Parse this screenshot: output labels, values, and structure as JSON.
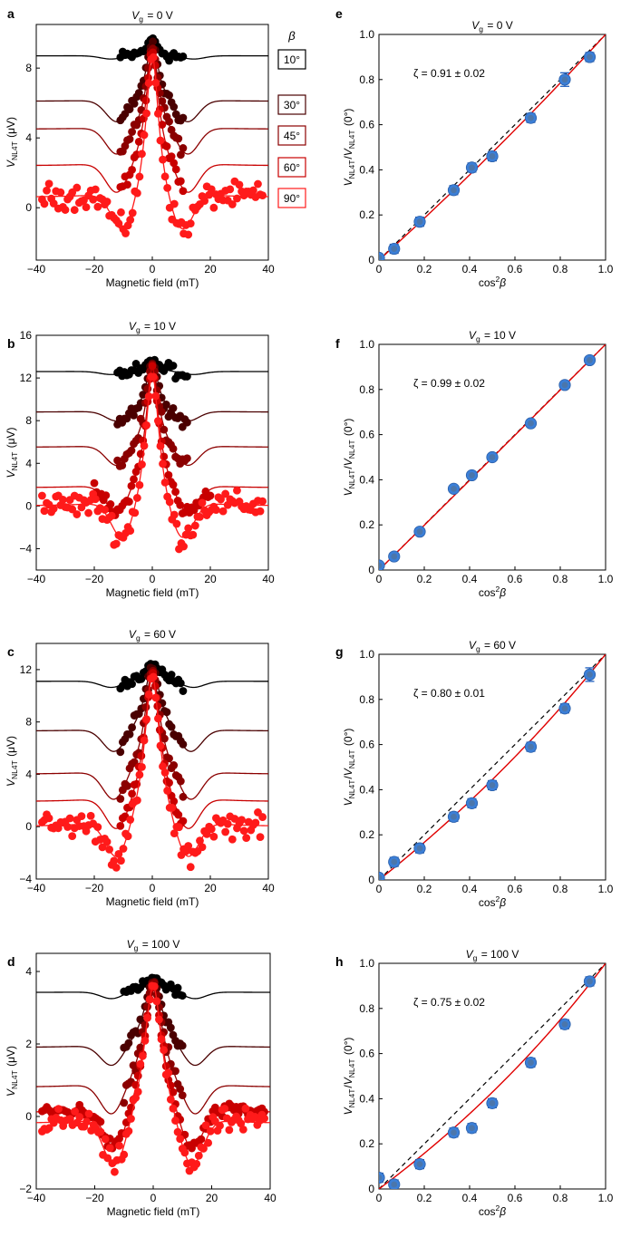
{
  "figure": {
    "beta_legend": {
      "header": "β",
      "entries": [
        {
          "label": "10°",
          "color": "#000000"
        },
        {
          "label": "30°",
          "color": "#4a0000"
        },
        {
          "label": "45°",
          "color": "#8b0000"
        },
        {
          "label": "60°",
          "color": "#c80000"
        },
        {
          "label": "90°",
          "color": "#ff1a1a"
        }
      ]
    }
  },
  "chart_data": [
    {
      "panel": "a",
      "type": "scatter",
      "title": "V_g = 0 V",
      "xlabel": "Magnetic field (mT)",
      "ylabel": "V_NL4T (μV)",
      "xlim": [
        -40,
        40
      ],
      "ylim": [
        -3,
        10.5
      ],
      "xticks": [
        -40,
        -20,
        0,
        20,
        40
      ],
      "yticks": [
        0,
        4,
        8
      ],
      "series": [
        {
          "name": "10°",
          "color": "#000000",
          "baseline": 8.7,
          "peak": 9.7,
          "dip": 0.2,
          "width": 2.0,
          "dip_width": 14,
          "range": 11
        },
        {
          "name": "30°",
          "color": "#4a0000",
          "baseline": 6.1,
          "peak": 9.5,
          "dip": 1.3,
          "width": 2.4,
          "dip_width": 12,
          "range": 11
        },
        {
          "name": "45°",
          "color": "#8b0000",
          "baseline": 4.5,
          "peak": 9.2,
          "dip": 1.6,
          "width": 2.4,
          "dip_width": 12,
          "range": 11
        },
        {
          "name": "60°",
          "color": "#c80000",
          "baseline": 2.4,
          "peak": 9.0,
          "dip": 1.8,
          "width": 2.6,
          "dip_width": 12,
          "range": 11
        },
        {
          "name": "90°",
          "color": "#ff1a1a",
          "baseline": 0.6,
          "peak": 8.8,
          "dip": 2.3,
          "width": 2.6,
          "dip_width": 10,
          "range": 38
        }
      ]
    },
    {
      "panel": "b",
      "type": "scatter",
      "title": "V_g = 10 V",
      "xlabel": "Magnetic field (mT)",
      "ylabel": "V_NL4T (μV)",
      "xlim": [
        -40,
        40
      ],
      "ylim": [
        -6,
        16
      ],
      "xticks": [
        -40,
        -20,
        0,
        20,
        40
      ],
      "yticks": [
        -4,
        0,
        4,
        8,
        12,
        16
      ],
      "series": [
        {
          "name": "10°",
          "color": "#000000",
          "baseline": 12.6,
          "peak": 13.8,
          "dip": 0.3,
          "width": 2.0,
          "dip_width": 14,
          "range": 12
        },
        {
          "name": "30°",
          "color": "#4a0000",
          "baseline": 8.8,
          "peak": 13.5,
          "dip": 1.0,
          "width": 2.4,
          "dip_width": 12,
          "range": 12
        },
        {
          "name": "45°",
          "color": "#8b0000",
          "baseline": 5.5,
          "peak": 13.3,
          "dip": 2.0,
          "width": 2.5,
          "dip_width": 12,
          "range": 12
        },
        {
          "name": "60°",
          "color": "#c80000",
          "baseline": 1.7,
          "peak": 13.0,
          "dip": 2.8,
          "width": 2.6,
          "dip_width": 12,
          "range": 20
        },
        {
          "name": "90°",
          "color": "#ff1a1a",
          "baseline": 0.0,
          "peak": 12.5,
          "dip": 3.8,
          "width": 2.8,
          "dip_width": 10,
          "range": 38
        }
      ]
    },
    {
      "panel": "c",
      "type": "scatter",
      "title": "V_g = 60 V",
      "xlabel": "Magnetic field (mT)",
      "ylabel": "V_NL4T (μV)",
      "xlim": [
        -40,
        40
      ],
      "ylim": [
        -4,
        14
      ],
      "xticks": [
        -40,
        -20,
        0,
        20,
        40
      ],
      "yticks": [
        -4,
        0,
        4,
        8,
        12
      ],
      "series": [
        {
          "name": "10°",
          "color": "#000000",
          "baseline": 11.1,
          "peak": 12.5,
          "dip": 0.5,
          "width": 2.5,
          "dip_width": 14,
          "range": 11
        },
        {
          "name": "30°",
          "color": "#4a0000",
          "baseline": 7.3,
          "peak": 12.3,
          "dip": 1.8,
          "width": 3.0,
          "dip_width": 13,
          "range": 11
        },
        {
          "name": "45°",
          "color": "#8b0000",
          "baseline": 4.0,
          "peak": 12.0,
          "dip": 2.3,
          "width": 3.0,
          "dip_width": 13,
          "range": 11
        },
        {
          "name": "60°",
          "color": "#c80000",
          "baseline": 1.9,
          "peak": 11.8,
          "dip": 2.6,
          "width": 3.0,
          "dip_width": 12,
          "range": 11
        },
        {
          "name": "90°",
          "color": "#ff1a1a",
          "baseline": 0.0,
          "peak": 11.5,
          "dip": 3.0,
          "width": 3.2,
          "dip_width": 12,
          "range": 38
        }
      ]
    },
    {
      "panel": "d",
      "type": "scatter",
      "title": "V_g = 100 V",
      "xlabel": "Magnetic field (mT)",
      "ylabel": "V_NL4T (μV)",
      "xlim": [
        -40,
        40
      ],
      "ylim": [
        -2,
        4.5
      ],
      "xticks": [
        -40,
        -20,
        0,
        20,
        40
      ],
      "yticks": [
        -2,
        0,
        2,
        4
      ],
      "series": [
        {
          "name": "10°",
          "color": "#000000",
          "baseline": 3.42,
          "peak": 3.85,
          "dip": 0.2,
          "width": 4.0,
          "dip_width": 14,
          "range": 10
        },
        {
          "name": "30°",
          "color": "#4a0000",
          "baseline": 1.9,
          "peak": 3.75,
          "dip": 0.6,
          "width": 3.6,
          "dip_width": 14,
          "range": 10
        },
        {
          "name": "45°",
          "color": "#8b0000",
          "baseline": 0.8,
          "peak": 3.7,
          "dip": 0.9,
          "width": 3.6,
          "dip_width": 14,
          "range": 10
        },
        {
          "name": "60°",
          "color": "#c80000",
          "baseline": 0.1,
          "peak": 3.6,
          "dip": 1.2,
          "width": 3.6,
          "dip_width": 13,
          "range": 38
        },
        {
          "name": "90°",
          "color": "#ff1a1a",
          "baseline": -0.2,
          "peak": 3.6,
          "dip": 1.4,
          "width": 3.6,
          "dip_width": 13,
          "range": 38
        }
      ]
    },
    {
      "panel": "e",
      "type": "scatter",
      "title": "V_g = 0 V",
      "xlabel": "cos²β",
      "ylabel": "V_NL4T/V_NL4T (0°)",
      "annotation": "ζ = 0.91 ± 0.02",
      "zeta": 0.91,
      "xlim": [
        0,
        1
      ],
      "ylim": [
        0,
        1
      ],
      "xticks": [
        0,
        0.2,
        0.4,
        0.6,
        0.8,
        1.0
      ],
      "yticks": [
        0,
        0.2,
        0.4,
        0.6,
        0.8,
        1.0
      ],
      "tick_labels": [
        "0",
        "0.2",
        "0.4",
        "0.6",
        "0.8",
        "1.0"
      ],
      "x": [
        0.0,
        0.067,
        0.18,
        0.33,
        0.41,
        0.5,
        0.67,
        0.82,
        0.93
      ],
      "y": [
        0.01,
        0.05,
        0.17,
        0.31,
        0.41,
        0.46,
        0.63,
        0.8,
        0.9
      ],
      "err": [
        0.01,
        0.02,
        0.02,
        0.02,
        0.02,
        0.02,
        0.02,
        0.03,
        0.02
      ]
    },
    {
      "panel": "f",
      "type": "scatter",
      "title": "V_g = 10 V",
      "xlabel": "cos²β",
      "ylabel": "V_NL4T/V_NL4T (0°)",
      "annotation": "ζ = 0.99 ± 0.02",
      "zeta": 0.99,
      "xlim": [
        0,
        1
      ],
      "ylim": [
        0,
        1
      ],
      "xticks": [
        0,
        0.2,
        0.4,
        0.6,
        0.8,
        1.0
      ],
      "yticks": [
        0,
        0.2,
        0.4,
        0.6,
        0.8,
        1.0
      ],
      "tick_labels": [
        "0",
        "0.2",
        "0.4",
        "0.6",
        "0.8",
        "1.0"
      ],
      "x": [
        0.0,
        0.067,
        0.18,
        0.33,
        0.41,
        0.5,
        0.67,
        0.82,
        0.93
      ],
      "y": [
        0.02,
        0.06,
        0.17,
        0.36,
        0.42,
        0.5,
        0.65,
        0.82,
        0.93
      ],
      "err": [
        0.01,
        0.01,
        0.01,
        0.01,
        0.01,
        0.01,
        0.01,
        0.01,
        0.01
      ]
    },
    {
      "panel": "g",
      "type": "scatter",
      "title": "V_g = 60 V",
      "xlabel": "cos²β",
      "ylabel": "V_NL4T/V_NL4T (0°)",
      "annotation": "ζ = 0.80 ± 0.01",
      "zeta": 0.8,
      "xlim": [
        0,
        1
      ],
      "ylim": [
        0,
        1
      ],
      "xticks": [
        0,
        0.2,
        0.4,
        0.6,
        0.8,
        1.0
      ],
      "yticks": [
        0,
        0.2,
        0.4,
        0.6,
        0.8,
        1.0
      ],
      "tick_labels": [
        "0",
        "0.2",
        "0.4",
        "0.6",
        "0.8",
        "1.0"
      ],
      "x": [
        0.0,
        0.067,
        0.18,
        0.33,
        0.41,
        0.5,
        0.67,
        0.82,
        0.93
      ],
      "y": [
        0.01,
        0.08,
        0.14,
        0.28,
        0.34,
        0.42,
        0.59,
        0.76,
        0.91
      ],
      "err": [
        0.01,
        0.02,
        0.02,
        0.02,
        0.02,
        0.02,
        0.02,
        0.02,
        0.03
      ]
    },
    {
      "panel": "h",
      "type": "scatter",
      "title": "V_g = 100 V",
      "xlabel": "cos²β",
      "ylabel": "V_NL4T/V_NL4T (0°)",
      "annotation": "ζ = 0.75 ± 0.02",
      "zeta": 0.75,
      "xlim": [
        0,
        1
      ],
      "ylim": [
        0,
        1
      ],
      "xticks": [
        0,
        0.2,
        0.4,
        0.6,
        0.8,
        1.0
      ],
      "yticks": [
        0,
        0.2,
        0.4,
        0.6,
        0.8,
        1.0
      ],
      "tick_labels": [
        "0",
        "0.2",
        "0.4",
        "0.6",
        "0.8",
        "1.0"
      ],
      "x": [
        0.0,
        0.067,
        0.18,
        0.33,
        0.41,
        0.5,
        0.67,
        0.82,
        0.93
      ],
      "y": [
        0.05,
        0.02,
        0.11,
        0.25,
        0.27,
        0.38,
        0.56,
        0.73,
        0.92
      ],
      "err": [
        0.02,
        0.02,
        0.02,
        0.02,
        0.02,
        0.02,
        0.02,
        0.02,
        0.02
      ]
    }
  ]
}
